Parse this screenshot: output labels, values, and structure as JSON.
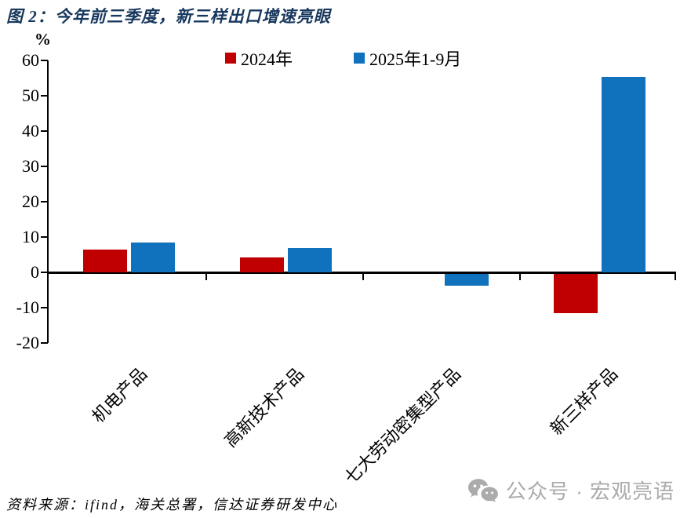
{
  "title": "图 2：今年前三季度，新三样出口增速亮眼",
  "colors": {
    "title": "#17375D",
    "axis": "#000000",
    "watermark": "#ABABAB"
  },
  "chart_data": {
    "type": "bar",
    "title": "图 2：今年前三季度，新三样出口增速亮眼",
    "unit_label": "%",
    "categories": [
      "机电产品",
      "高新技术产品",
      "七大劳动密集型产品",
      "新三样产品"
    ],
    "series": [
      {
        "name": "2024年",
        "color": "#C00000",
        "values": [
          6.4,
          4.2,
          0,
          -11.2
        ]
      },
      {
        "name": "2025年1-9月",
        "color": "#1072BC",
        "values": [
          8.4,
          6.8,
          -3.4,
          55.4
        ]
      }
    ],
    "ylim": [
      -20,
      60
    ],
    "ytick_step": 10,
    "legend_position": "top-center",
    "grid": false,
    "xlabel": "",
    "ylabel": "%"
  },
  "footer": {
    "source_text": "资料来源：ifind，海关总署，信达证券研发中心"
  },
  "watermark": {
    "icon": "wechat-icon",
    "text": "公众号 · 宏观亮语"
  }
}
